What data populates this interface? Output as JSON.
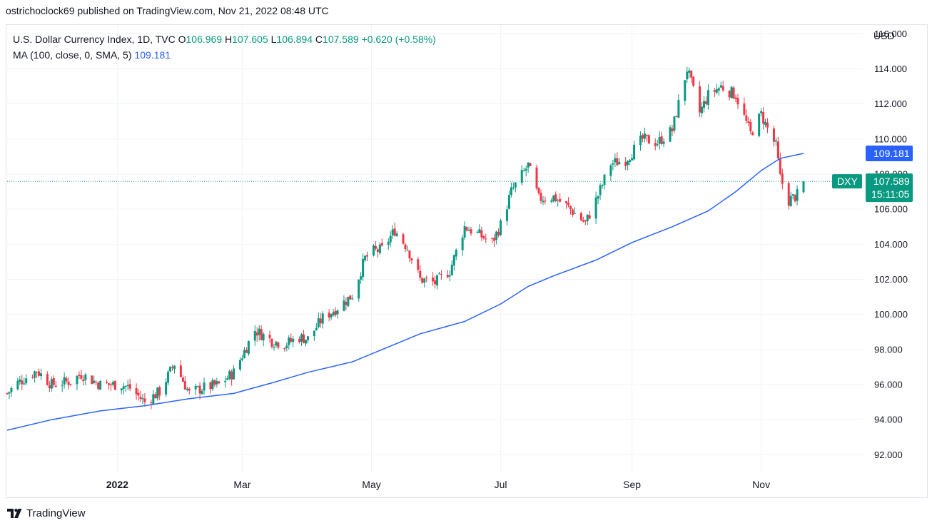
{
  "header": {
    "publish_line": "ostrichoclock69 published on TradingView.com, Nov 21, 2022 08:48 UTC"
  },
  "legend": {
    "symbol": "U.S. Dollar Currency Index, 1D, TVC",
    "o_label": "O",
    "o_value": "106.969",
    "h_label": "H",
    "h_value": "107.605",
    "l_label": "L",
    "l_value": "106.894",
    "c_label": "C",
    "c_value": "107.589",
    "change": "+0.620 (+0.58%)",
    "ma_label": "MA (100, close, 0, SMA, 5)",
    "ma_value": "109.181"
  },
  "price_axis": {
    "currency": "USD",
    "ticks": [
      "116.000",
      "114.000",
      "112.000",
      "110.000",
      "108.000",
      "106.000",
      "104.000",
      "102.000",
      "100.000",
      "98.000",
      "96.000",
      "94.000",
      "92.000"
    ]
  },
  "time_axis": {
    "ticks": [
      "2022",
      "Mar",
      "May",
      "Jul",
      "Sep",
      "Nov"
    ]
  },
  "tags": {
    "ma": {
      "value": "109.181",
      "color": "#2962ff"
    },
    "price": {
      "symbol": "DXY",
      "value": "107.589",
      "countdown": "15:11:05",
      "color": "#089981"
    }
  },
  "footer": {
    "brand": "TradingView",
    "logo_icon": "tradingview-logo-icon"
  },
  "colors": {
    "up": "#089981",
    "down": "#f23645",
    "ma": "#2962ff",
    "grid": "#f0f3fa"
  },
  "chart_data": {
    "type": "candlestick",
    "title": "U.S. Dollar Currency Index, 1D, TVC",
    "xlabel": "",
    "ylabel": "USD",
    "ylim": [
      91.0,
      116.5
    ],
    "x_start": "2021-11-10",
    "x_end": "2022-11-21",
    "grid": true,
    "legend_position": "top-left",
    "close_series": [
      [
        "2021-11-10",
        95.5
      ],
      [
        "2021-11-15",
        96.1
      ],
      [
        "2021-11-24",
        96.8
      ],
      [
        "2021-12-01",
        96.0
      ],
      [
        "2021-12-10",
        96.2
      ],
      [
        "2021-12-15",
        96.6
      ],
      [
        "2021-12-24",
        96.0
      ],
      [
        "2022-01-03",
        96.0
      ],
      [
        "2022-01-07",
        95.8
      ],
      [
        "2022-01-14",
        95.0
      ],
      [
        "2022-01-21",
        95.6
      ],
      [
        "2022-01-28",
        97.2
      ],
      [
        "2022-02-04",
        95.5
      ],
      [
        "2022-02-10",
        95.8
      ],
      [
        "2022-02-18",
        96.0
      ],
      [
        "2022-02-25",
        96.7
      ],
      [
        "2022-03-04",
        98.4
      ],
      [
        "2022-03-07",
        99.1
      ],
      [
        "2022-03-15",
        98.5
      ],
      [
        "2022-03-21",
        98.3
      ],
      [
        "2022-03-28",
        98.7
      ],
      [
        "2022-04-01",
        98.6
      ],
      [
        "2022-04-08",
        99.8
      ],
      [
        "2022-04-14",
        100.3
      ],
      [
        "2022-04-22",
        101.1
      ],
      [
        "2022-04-28",
        103.2
      ],
      [
        "2022-05-02",
        103.6
      ],
      [
        "2022-05-06",
        103.7
      ],
      [
        "2022-05-12",
        104.8
      ],
      [
        "2022-05-18",
        103.8
      ],
      [
        "2022-05-24",
        102.0
      ],
      [
        "2022-05-31",
        101.8
      ],
      [
        "2022-06-07",
        102.5
      ],
      [
        "2022-06-14",
        105.0
      ],
      [
        "2022-06-20",
        104.6
      ],
      [
        "2022-06-27",
        104.1
      ],
      [
        "2022-07-01",
        105.1
      ],
      [
        "2022-07-06",
        107.0
      ],
      [
        "2022-07-14",
        108.5
      ],
      [
        "2022-07-19",
        106.6
      ],
      [
        "2022-07-26",
        106.7
      ],
      [
        "2022-08-02",
        106.1
      ],
      [
        "2022-08-10",
        105.2
      ],
      [
        "2022-08-15",
        106.5
      ],
      [
        "2022-08-22",
        108.6
      ],
      [
        "2022-08-29",
        108.8
      ],
      [
        "2022-09-06",
        110.0
      ],
      [
        "2022-09-13",
        109.8
      ],
      [
        "2022-09-20",
        110.5
      ],
      [
        "2022-09-27",
        114.0
      ],
      [
        "2022-10-03",
        111.5
      ],
      [
        "2022-10-07",
        112.5
      ],
      [
        "2022-10-13",
        113.0
      ],
      [
        "2022-10-20",
        112.5
      ],
      [
        "2022-10-27",
        110.3
      ],
      [
        "2022-11-01",
        111.4
      ],
      [
        "2022-11-04",
        110.6
      ],
      [
        "2022-11-08",
        109.6
      ],
      [
        "2022-11-10",
        107.8
      ],
      [
        "2022-11-14",
        106.5
      ],
      [
        "2022-11-18",
        106.8
      ],
      [
        "2022-11-21",
        107.589
      ]
    ],
    "series": [
      {
        "name": "MA (100, close, 0, SMA, 5)",
        "color": "#2962ff",
        "points": [
          [
            "2021-11-10",
            93.4
          ],
          [
            "2021-12-01",
            94.0
          ],
          [
            "2021-12-24",
            94.5
          ],
          [
            "2022-01-14",
            94.8
          ],
          [
            "2022-02-04",
            95.2
          ],
          [
            "2022-02-25",
            95.5
          ],
          [
            "2022-03-15",
            96.1
          ],
          [
            "2022-04-01",
            96.7
          ],
          [
            "2022-04-22",
            97.3
          ],
          [
            "2022-05-06",
            98.0
          ],
          [
            "2022-05-24",
            98.9
          ],
          [
            "2022-06-14",
            99.6
          ],
          [
            "2022-07-01",
            100.6
          ],
          [
            "2022-07-14",
            101.6
          ],
          [
            "2022-07-26",
            102.2
          ],
          [
            "2022-08-15",
            103.1
          ],
          [
            "2022-09-01",
            104.1
          ],
          [
            "2022-09-20",
            105.0
          ],
          [
            "2022-10-07",
            105.9
          ],
          [
            "2022-10-20",
            107.0
          ],
          [
            "2022-11-01",
            108.2
          ],
          [
            "2022-11-10",
            108.9
          ],
          [
            "2022-11-21",
            109.181
          ]
        ]
      }
    ]
  }
}
